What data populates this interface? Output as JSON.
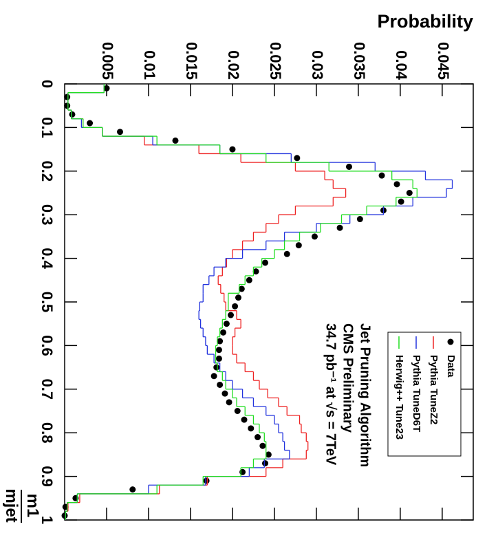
{
  "chart_data": {
    "type": "histogram",
    "y_label": "Probability",
    "x_label": {
      "numerator": "m1",
      "denominator": "mjet"
    },
    "annotations": [
      "Jet Pruning Algorithm",
      "CMS Preliminary",
      "34.7 pb⁻¹ at √s = 7TeV"
    ],
    "xlim": [
      0,
      1
    ],
    "ylim": [
      0,
      0.0487
    ],
    "xticks": [
      0,
      0.1,
      0.2,
      0.3,
      0.4,
      0.5,
      0.6,
      0.7,
      0.8,
      0.9,
      1
    ],
    "yticks": [
      0.005,
      0.01,
      0.015,
      0.02,
      0.025,
      0.03,
      0.035,
      0.04,
      0.045
    ],
    "bins": [
      0,
      0.02,
      0.04,
      0.06,
      0.08,
      0.1,
      0.12,
      0.14,
      0.16,
      0.18,
      0.2,
      0.22,
      0.24,
      0.26,
      0.28,
      0.3,
      0.32,
      0.34,
      0.36,
      0.38,
      0.4,
      0.42,
      0.44,
      0.46,
      0.48,
      0.5,
      0.52,
      0.54,
      0.56,
      0.58,
      0.6,
      0.62,
      0.64,
      0.66,
      0.68,
      0.7,
      0.72,
      0.74,
      0.76,
      0.78,
      0.8,
      0.82,
      0.84,
      0.86,
      0.88,
      0.9,
      0.92,
      0.94,
      0.96,
      0.98,
      1
    ],
    "series": [
      {
        "name": "Data",
        "color": "#000000",
        "style": "points",
        "values": [
          0.005,
          0.0003,
          0.0003,
          0.0009,
          0.003,
          0.0066,
          0.0132,
          0.02,
          0.0277,
          0.0339,
          0.0378,
          0.0396,
          0.0411,
          0.0401,
          0.038,
          0.0352,
          0.0328,
          0.0298,
          0.0279,
          0.0265,
          0.0239,
          0.0228,
          0.022,
          0.0211,
          0.0207,
          0.0203,
          0.0198,
          0.0193,
          0.0189,
          0.0185,
          0.0184,
          0.0184,
          0.0181,
          0.0178,
          0.0185,
          0.0191,
          0.0196,
          0.0206,
          0.0214,
          0.0222,
          0.023,
          0.0236,
          0.0243,
          0.0239,
          0.0212,
          0.0169,
          0.0081,
          0.0013,
          0.0001,
          0.0
        ]
      },
      {
        "name": "Pythia TuneZ2",
        "color": "#ee2222",
        "style": "steps",
        "values": [
          0.0047,
          0.0004,
          0.0004,
          0.0008,
          0.0022,
          0.0045,
          0.0095,
          0.016,
          0.021,
          0.0275,
          0.031,
          0.032,
          0.0335,
          0.032,
          0.0275,
          0.0255,
          0.024,
          0.0225,
          0.0212,
          0.02,
          0.0193,
          0.0188,
          0.0183,
          0.0186,
          0.019,
          0.0192,
          0.0205,
          0.021,
          0.0203,
          0.02,
          0.02,
          0.0205,
          0.0215,
          0.0225,
          0.0232,
          0.0242,
          0.0255,
          0.0265,
          0.028,
          0.0282,
          0.0288,
          0.029,
          0.0288,
          0.026,
          0.024,
          0.017,
          0.0113,
          0.0018,
          0.0004,
          0.0001
        ]
      },
      {
        "name": "Pythia TuneD6T",
        "color": "#2233dd",
        "style": "steps",
        "values": [
          0.0047,
          0.0004,
          0.0004,
          0.0008,
          0.002,
          0.0045,
          0.0105,
          0.0185,
          0.027,
          0.037,
          0.043,
          0.0462,
          0.0455,
          0.0415,
          0.038,
          0.034,
          0.03,
          0.0262,
          0.024,
          0.0212,
          0.0192,
          0.0178,
          0.0172,
          0.0165,
          0.0165,
          0.0161,
          0.016,
          0.0162,
          0.0165,
          0.0168,
          0.017,
          0.0178,
          0.0185,
          0.0192,
          0.02,
          0.0212,
          0.0225,
          0.024,
          0.025,
          0.0255,
          0.026,
          0.0262,
          0.0268,
          0.0238,
          0.022,
          0.0168,
          0.01,
          0.0015,
          0.0003,
          0.0001
        ]
      },
      {
        "name": "Herwig++ Tune23",
        "color": "#22dd22",
        "style": "steps",
        "values": [
          0.0047,
          0.0004,
          0.0004,
          0.0008,
          0.0022,
          0.0045,
          0.011,
          0.0185,
          0.024,
          0.0315,
          0.039,
          0.0415,
          0.042,
          0.0395,
          0.036,
          0.033,
          0.0305,
          0.028,
          0.0262,
          0.025,
          0.0235,
          0.0225,
          0.0215,
          0.0208,
          0.0195,
          0.0195,
          0.0192,
          0.0188,
          0.0185,
          0.0182,
          0.018,
          0.018,
          0.0182,
          0.0188,
          0.0192,
          0.02,
          0.0205,
          0.0215,
          0.0225,
          0.0232,
          0.0238,
          0.024,
          0.024,
          0.0225,
          0.021,
          0.0165,
          0.011,
          0.0015,
          0.0003,
          0.0001
        ]
      }
    ]
  }
}
